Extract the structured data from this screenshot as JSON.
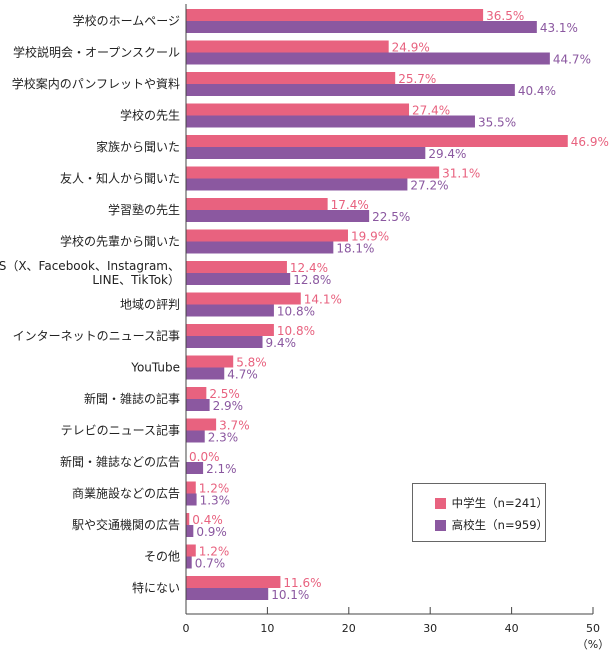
{
  "chart_data": {
    "type": "bar",
    "orientation": "horizontal",
    "categories": [
      "学校のホームページ",
      "学校説明会・オープンスクール",
      "学校案内のパンフレットや資料",
      "学校の先生",
      "家族から聞いた",
      "友人・知人から聞いた",
      "学習塾の先生",
      "学校の先輩から聞いた",
      "SNS（X、Facebook、Instagram、\nLINE、TikTok）",
      "地域の評判",
      "インターネットのニュース記事",
      "YouTube",
      "新聞・雑誌の記事",
      "テレビのニュース記事",
      "新聞・雑誌などの広告",
      "商業施設などの広告",
      "駅や交通機関の広告",
      "その他",
      "特にない"
    ],
    "series": [
      {
        "name": "中学生（n=241）",
        "color": "#e8627f",
        "values": [
          36.5,
          24.9,
          25.7,
          27.4,
          46.9,
          31.1,
          17.4,
          19.9,
          12.4,
          14.1,
          10.8,
          5.8,
          2.5,
          3.7,
          0.0,
          1.2,
          0.4,
          1.2,
          11.6
        ]
      },
      {
        "name": "高校生（n=959）",
        "color": "#8b58a0",
        "values": [
          43.1,
          44.7,
          40.4,
          35.5,
          29.4,
          27.2,
          22.5,
          18.1,
          12.8,
          10.8,
          9.4,
          4.7,
          2.9,
          2.3,
          2.1,
          1.3,
          0.9,
          0.7,
          10.1
        ]
      }
    ],
    "xlim": [
      0,
      50
    ],
    "xticks": [
      "0",
      "10",
      "20",
      "30",
      "40",
      "50"
    ],
    "xunit": "（%）",
    "value_suffix": "%",
    "grid": false,
    "legend": "bottom-right",
    "label_colors": {
      "series0": "#e8627f",
      "series1": "#8b58a0"
    }
  }
}
